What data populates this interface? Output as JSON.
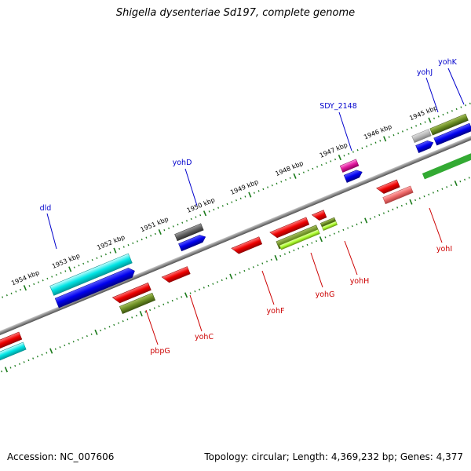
{
  "title": "Shigella dysenteriae Sd197, complete genome",
  "footer": {
    "accession": "Accession: NC_007606",
    "topology": "Topology: circular; Length: 4,369,232 bp; Genes: 4,377"
  },
  "colors": {
    "backbone": "#8a8a8a",
    "tick": "#1a7a1a",
    "top_label": "#0000cc",
    "bottom_label": "#cc0000"
  },
  "kbp_labels": [
    "1954 kbp",
    "1953 kbp",
    "1952 kbp",
    "1951 kbp",
    "1950 kbp",
    "1949 kbp",
    "1948 kbp",
    "1947 kbp",
    "1946 kbp",
    "1945 kbp"
  ],
  "top_genes": [
    "dld",
    "yohD",
    "SDY_2148",
    "yohJ",
    "yohK"
  ],
  "bottom_genes": [
    "pbpG",
    "yohC",
    "yohF",
    "yohG",
    "yohH",
    "yohI"
  ]
}
